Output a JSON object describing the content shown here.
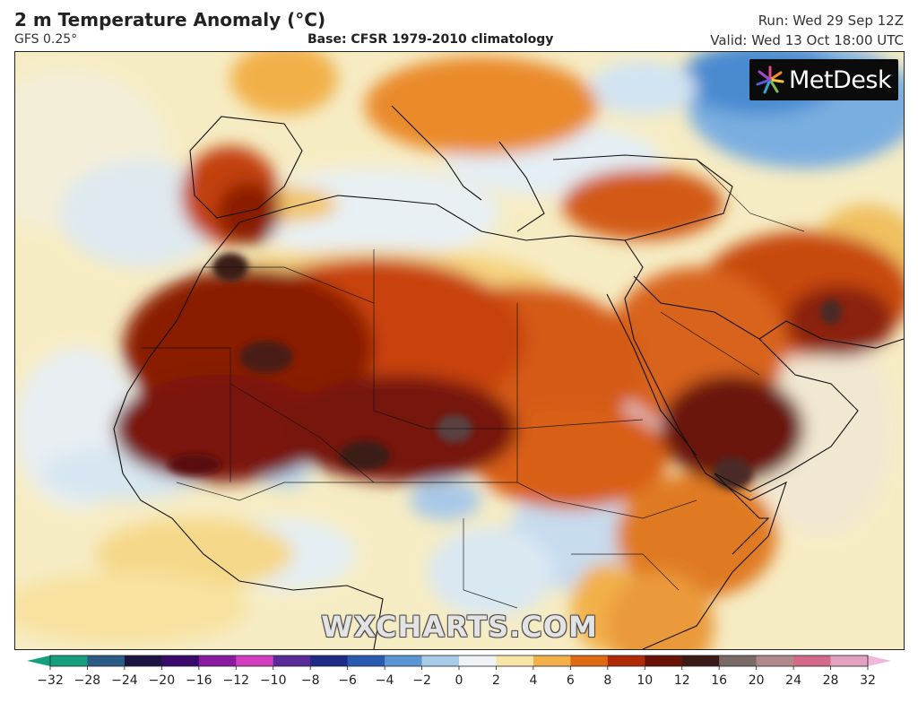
{
  "header": {
    "title": "2 m Temperature Anomaly (°C)",
    "model": "GFS 0.25°",
    "base": "Base: CFSR 1979-2010 climatology",
    "run": "Run: Wed 29 Sep 12Z",
    "valid": "Valid: Wed 13 Oct 18:00 UTC"
  },
  "brand": {
    "name": "MetDesk",
    "icon": "metdesk-star-icon"
  },
  "watermark": "WXCHARTS.COM",
  "legend": {
    "ticks": [
      "−32",
      "−28",
      "−24",
      "−20",
      "−16",
      "−12",
      "−10",
      "−8",
      "−6",
      "−4",
      "−2",
      "0",
      "2",
      "4",
      "6",
      "8",
      "10",
      "12",
      "16",
      "20",
      "24",
      "28",
      "32"
    ],
    "colors": [
      "#14a07c",
      "#2b5c86",
      "#1b1540",
      "#3a0a6a",
      "#8a1aa0",
      "#d23fbe",
      "#5a2a96",
      "#1e2a86",
      "#2a5ab0",
      "#5a96d2",
      "#a8cce8",
      "#eef3f8",
      "#f7e6a8",
      "#f2b04a",
      "#e06a14",
      "#b02a08",
      "#6a1208",
      "#3a1a16",
      "#7a6a66",
      "#b08a8a",
      "#d46a8a",
      "#e4a2c2"
    ],
    "arrow_left_color": "#14a07c",
    "arrow_right_color": "#f0b8d8"
  }
}
